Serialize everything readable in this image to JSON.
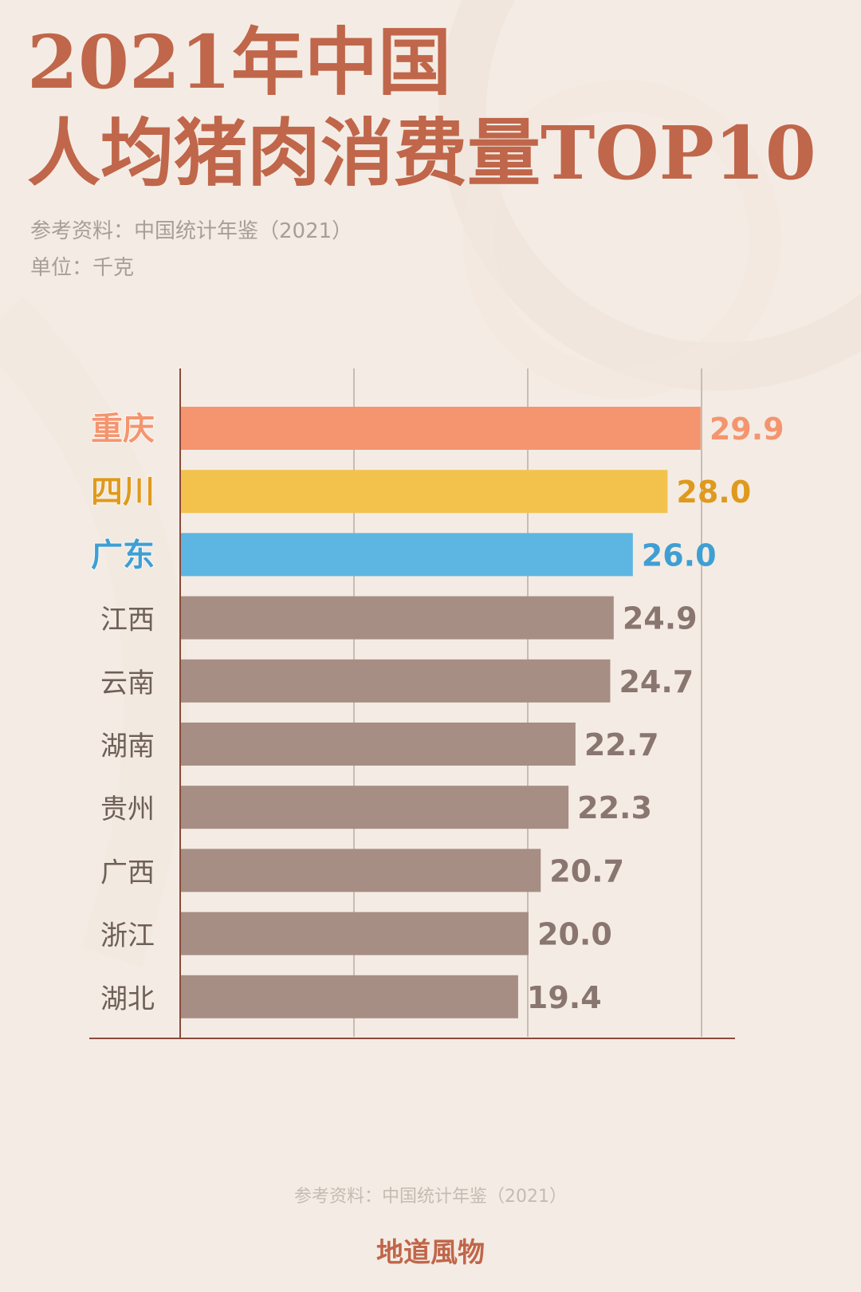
{
  "header": {
    "title_line1": "2021年中国",
    "title_line2": "人均猪肉消费量TOP10",
    "source": "参考资料：中国统计年鉴（2021）",
    "unit": "单位：千克"
  },
  "footer": {
    "source": "参考资料：中国统计年鉴（2021）",
    "brand": "地道風物"
  },
  "colors": {
    "background": "#f4ece4",
    "title": "#c0664a",
    "default_bar": "#a68e84",
    "default_label": "#8a7670",
    "highlight_1": "#f4956f",
    "highlight_2": "#f3c24d",
    "highlight_3": "#5db5e2"
  },
  "chart_data": {
    "type": "bar",
    "orientation": "horizontal",
    "categories": [
      "重庆",
      "四川",
      "广东",
      "江西",
      "云南",
      "湖南",
      "贵州",
      "广西",
      "浙江",
      "湖北"
    ],
    "values": [
      29.9,
      28.0,
      26.0,
      24.9,
      24.7,
      22.7,
      22.3,
      20.7,
      20.0,
      19.4
    ],
    "value_labels": [
      "29.9",
      "28.0",
      "26.0",
      "24.9",
      "24.7",
      "22.7",
      "22.3",
      "20.7",
      "20.0",
      "19.4"
    ],
    "highlight_colors": [
      "#f4956f",
      "#f3c24d",
      "#5db5e2"
    ],
    "highlight_label_colors": [
      "#f4956f",
      "#df9a1e",
      "#3f9fd3"
    ],
    "xlim": [
      0,
      30
    ],
    "grid": true,
    "grid_step": 10
  }
}
